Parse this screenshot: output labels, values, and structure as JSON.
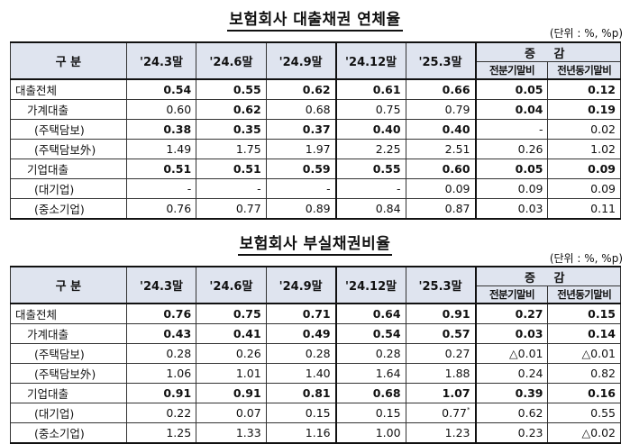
{
  "table1": {
    "title": "보험회사 대출채권 연체율",
    "unit": "(단위 : %, %p)",
    "header": {
      "gubun": "구    분",
      "periods": [
        "'24.3말",
        "'24.6말",
        "'24.9말",
        "'24.12말",
        "'25.3말"
      ],
      "change_group": "증 감",
      "change_cols": [
        "전분기말비",
        "전년동기말비"
      ]
    },
    "rows": [
      {
        "label": "대출전체",
        "values": [
          "0.54",
          "0.55",
          "0.62",
          "0.61",
          "0.66",
          "0.05",
          "0.12"
        ]
      },
      {
        "label": "가계대출",
        "values": [
          "0.60",
          "0.62",
          "0.68",
          "0.75",
          "0.79",
          "0.04",
          "0.19"
        ]
      },
      {
        "label": "(주택담보)",
        "values": [
          "0.38",
          "0.35",
          "0.37",
          "0.40",
          "0.40",
          "-",
          "0.02"
        ]
      },
      {
        "label": "(주택담보外)",
        "values": [
          "1.49",
          "1.75",
          "1.97",
          "2.25",
          "2.51",
          "0.26",
          "1.02"
        ]
      },
      {
        "label": "기업대출",
        "values": [
          "0.51",
          "0.51",
          "0.59",
          "0.55",
          "0.60",
          "0.05",
          "0.09"
        ]
      },
      {
        "label": "(대기업)",
        "values": [
          "-",
          "-",
          "-",
          "-",
          "0.09",
          "0.09",
          "0.09"
        ]
      },
      {
        "label": "(중소기업)",
        "values": [
          "0.76",
          "0.77",
          "0.89",
          "0.84",
          "0.87",
          "0.03",
          "0.11"
        ]
      }
    ]
  },
  "table2": {
    "title": "보험회사 부실채권비율",
    "unit": "(단위 : %, %p)",
    "header": {
      "gubun": "구    분",
      "periods": [
        "'24.3말",
        "'24.6말",
        "'24.9말",
        "'24.12말",
        "'25.3말"
      ],
      "change_group": "증 감",
      "change_cols": [
        "전분기말비",
        "전년동기말비"
      ]
    },
    "rows": [
      {
        "label": "대출전체",
        "values": [
          "0.76",
          "0.75",
          "0.71",
          "0.64",
          "0.91",
          "0.27",
          "0.15"
        ]
      },
      {
        "label": "가계대출",
        "values": [
          "0.43",
          "0.41",
          "0.49",
          "0.54",
          "0.57",
          "0.03",
          "0.14"
        ]
      },
      {
        "label": "(주택담보)",
        "values": [
          "0.28",
          "0.26",
          "0.28",
          "0.28",
          "0.27",
          "△0.01",
          "△0.01"
        ]
      },
      {
        "label": "(주택담보外)",
        "values": [
          "1.06",
          "1.01",
          "1.40",
          "1.64",
          "1.88",
          "0.24",
          "0.82"
        ]
      },
      {
        "label": "기업대출",
        "values": [
          "0.91",
          "0.91",
          "0.81",
          "0.68",
          "1.07",
          "0.39",
          "0.16"
        ]
      },
      {
        "label": "(대기업)",
        "values": [
          "0.22",
          "0.07",
          "0.15",
          "0.15",
          "0.77",
          "0.62",
          "0.55"
        ]
      },
      {
        "label": "(중소기업)",
        "values": [
          "1.25",
          "1.33",
          "1.16",
          "1.00",
          "1.23",
          "0.23",
          "△0.02"
        ]
      }
    ],
    "footnote_mark": "*"
  }
}
